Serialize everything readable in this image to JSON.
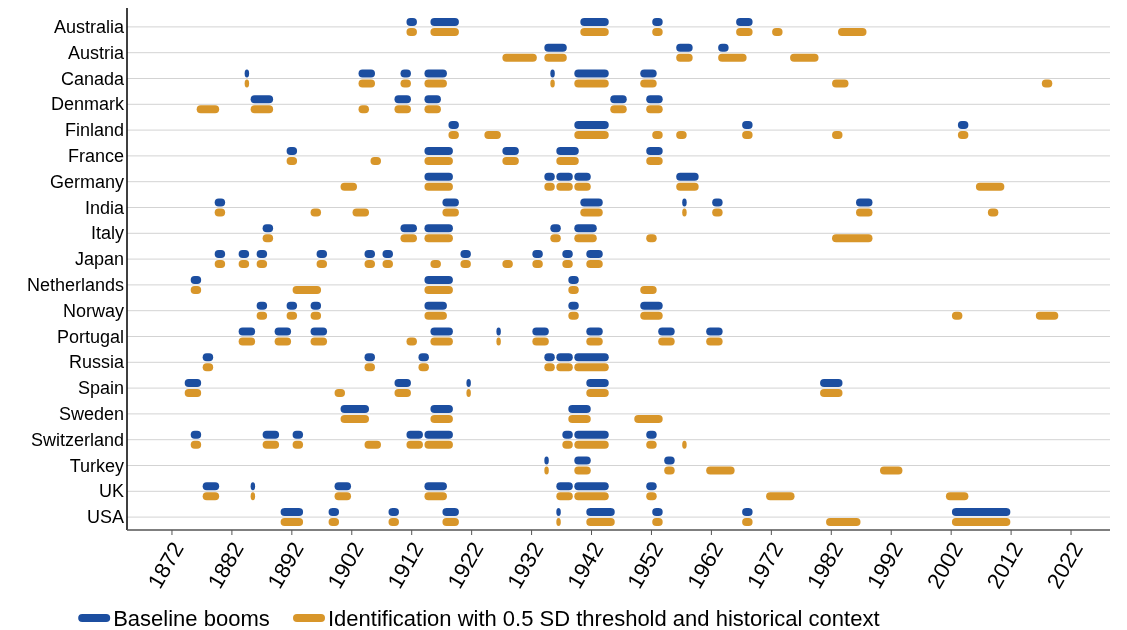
{
  "chart_data": {
    "type": "bar",
    "orientation": "horizontal",
    "categories": [
      "Australia",
      "Austria",
      "Canada",
      "Denmark",
      "Finland",
      "France",
      "Germany",
      "India",
      "Italy",
      "Japan",
      "Netherlands",
      "Norway",
      "Portugal",
      "Russia",
      "Spain",
      "Sweden",
      "Switzerland",
      "Turkey",
      "UK",
      "USA"
    ],
    "xlim": [
      1864.5,
      2028.5
    ],
    "xticks": [
      1872,
      1882,
      1892,
      1902,
      1912,
      1922,
      1932,
      1942,
      1952,
      1962,
      1972,
      1982,
      1992,
      2002,
      2012,
      2022
    ],
    "grid": "y",
    "legend": "bottom",
    "series": [
      {
        "name": "Baseline booms",
        "color": "#1c4ea0",
        "base": [
          1911,
          1934,
          1884,
          1885,
          1918,
          1891,
          1914,
          1879,
          1887,
          1879,
          1875,
          1886,
          1883,
          1877,
          1874,
          1900,
          1875,
          1934,
          1877,
          1890
        ],
        "values": [
          2,
          4,
          1,
          4,
          2,
          2,
          5,
          2,
          2,
          2,
          2,
          2,
          3,
          2,
          3,
          5,
          2,
          1,
          3,
          4
        ]
      },
      {
        "color": "#1c4ea0",
        "base": [
          1915,
          1956,
          1903,
          1909,
          1939,
          1914,
          1934,
          1917,
          1910,
          1883,
          1914,
          1891,
          1889,
          1904,
          1909,
          1915,
          1887,
          1939,
          1885,
          1898
        ],
        "values": [
          5,
          3,
          3,
          3,
          6,
          5,
          2,
          3,
          3,
          2,
          5,
          2,
          3,
          2,
          3,
          4,
          3,
          3,
          1,
          2
        ]
      },
      {
        "color": "#1c4ea0",
        "base": [
          1940,
          1963,
          1910,
          1914,
          1967,
          1927,
          1936,
          1940,
          1914,
          1886,
          1938,
          1895,
          1895,
          1913,
          1921,
          1938,
          1892,
          1954,
          1899,
          1908
        ],
        "values": [
          5,
          2,
          2,
          3,
          2,
          3,
          3,
          4,
          5,
          2,
          2,
          2,
          3,
          2,
          1,
          4,
          2,
          2,
          3,
          2
        ]
      },
      {
        "color": "#1c4ea0",
        "base": [
          1952,
          null,
          1914,
          1945,
          2003,
          1936,
          1939,
          1957,
          1935,
          1896,
          null,
          1914,
          1915,
          1934,
          1941,
          null,
          1911,
          null,
          1914,
          1917
        ],
        "values": [
          2,
          null,
          4,
          3,
          2,
          4,
          3,
          1,
          2,
          2,
          null,
          4,
          4,
          2,
          4,
          null,
          3,
          null,
          4,
          3
        ]
      },
      {
        "color": "#1c4ea0",
        "base": [
          1966,
          null,
          1935,
          1951,
          null,
          1951,
          1956,
          1962,
          1939,
          1904,
          null,
          1938,
          1926,
          1936,
          1980,
          null,
          1914,
          null,
          1936,
          1936
        ],
        "values": [
          3,
          null,
          1,
          3,
          null,
          3,
          4,
          2,
          4,
          2,
          null,
          2,
          1,
          3,
          4,
          null,
          5,
          null,
          3,
          1
        ]
      },
      {
        "color": "#1c4ea0",
        "base": [
          null,
          null,
          1939,
          null,
          null,
          null,
          null,
          1986,
          null,
          1907,
          null,
          1950,
          1932,
          1939,
          null,
          null,
          1937,
          null,
          1939,
          1941
        ],
        "values": [
          null,
          null,
          6,
          null,
          null,
          null,
          null,
          3,
          null,
          2,
          null,
          4,
          3,
          6,
          null,
          null,
          2,
          null,
          6,
          5
        ]
      },
      {
        "color": "#1c4ea0",
        "base": [
          null,
          null,
          1950,
          null,
          null,
          null,
          null,
          null,
          null,
          1920,
          null,
          null,
          1941,
          null,
          null,
          null,
          1939,
          null,
          1951,
          1952
        ],
        "values": [
          null,
          null,
          3,
          null,
          null,
          null,
          null,
          null,
          null,
          2,
          null,
          null,
          3,
          null,
          null,
          null,
          6,
          null,
          2,
          2
        ]
      },
      {
        "color": "#1c4ea0",
        "base": [
          null,
          null,
          null,
          null,
          null,
          null,
          null,
          null,
          null,
          1932,
          null,
          null,
          1953,
          null,
          null,
          null,
          1951,
          null,
          null,
          1967
        ],
        "values": [
          null,
          null,
          null,
          null,
          null,
          null,
          null,
          null,
          null,
          2,
          null,
          null,
          3,
          null,
          null,
          null,
          2,
          null,
          null,
          2
        ]
      },
      {
        "color": "#1c4ea0",
        "base": [
          null,
          null,
          null,
          null,
          null,
          null,
          null,
          null,
          null,
          1937,
          null,
          null,
          1961,
          null,
          null,
          null,
          null,
          null,
          null,
          2002
        ],
        "values": [
          null,
          null,
          null,
          null,
          null,
          null,
          null,
          null,
          null,
          2,
          null,
          null,
          3,
          null,
          null,
          null,
          null,
          null,
          null,
          10
        ]
      },
      {
        "color": "#1c4ea0",
        "base": [
          null,
          null,
          null,
          null,
          null,
          null,
          null,
          null,
          null,
          1941,
          null,
          null,
          null,
          null,
          null,
          null,
          null,
          null,
          null,
          null
        ],
        "values": [
          null,
          null,
          null,
          null,
          null,
          null,
          null,
          null,
          null,
          3,
          null,
          null,
          null,
          null,
          null,
          null,
          null,
          null,
          null,
          null
        ]
      },
      {
        "name": "Identification with 0.5 SD threshold and historical context",
        "color": "#d8962a",
        "base": [
          1911,
          1927,
          1884,
          1876,
          1918,
          1891,
          1900,
          1879,
          1887,
          1879,
          1875,
          1886,
          1883,
          1877,
          1874,
          1900,
          1875,
          1934,
          1877,
          1890
        ],
        "values": [
          2,
          6,
          1,
          4,
          2,
          2,
          3,
          2,
          2,
          2,
          2,
          2,
          3,
          2,
          3,
          5,
          2,
          1,
          3,
          4
        ]
      },
      {
        "color": "#d8962a",
        "base": [
          1915,
          1934,
          1903,
          1885,
          1924,
          1905,
          1914,
          1895,
          1910,
          1883,
          1892,
          1891,
          1889,
          1904,
          1899,
          1915,
          1887,
          1939,
          1885,
          1898
        ],
        "values": [
          5,
          4,
          3,
          4,
          3,
          2,
          5,
          2,
          3,
          2,
          5,
          2,
          3,
          2,
          2,
          4,
          3,
          3,
          1,
          2
        ]
      },
      {
        "color": "#d8962a",
        "base": [
          1940,
          1956,
          1910,
          1903,
          1939,
          1914,
          1934,
          1902,
          1914,
          1886,
          1914,
          1895,
          1895,
          1913,
          1909,
          1938,
          1892,
          1954,
          1899,
          1908
        ],
        "values": [
          5,
          3,
          2,
          2,
          6,
          5,
          2,
          3,
          5,
          2,
          5,
          2,
          3,
          2,
          3,
          4,
          2,
          2,
          3,
          2
        ]
      },
      {
        "color": "#d8962a",
        "base": [
          1952,
          1963,
          1914,
          1909,
          1952,
          1927,
          1936,
          1917,
          1935,
          1896,
          1938,
          1914,
          1911,
          1934,
          1921,
          1949,
          1904,
          1961,
          1914,
          1917
        ],
        "values": [
          2,
          5,
          4,
          3,
          2,
          3,
          3,
          3,
          2,
          2,
          2,
          4,
          2,
          2,
          1,
          5,
          3,
          5,
          4,
          3
        ]
      },
      {
        "color": "#d8962a",
        "base": [
          1966,
          1975,
          1935,
          1914,
          1956,
          1936,
          1939,
          1940,
          1939,
          1904,
          1950,
          1938,
          1915,
          1936,
          1941,
          null,
          1911,
          1990,
          1936,
          1936
        ],
        "values": [
          3,
          5,
          1,
          3,
          2,
          4,
          3,
          4,
          4,
          2,
          3,
          2,
          4,
          3,
          4,
          null,
          3,
          4,
          3,
          1
        ]
      },
      {
        "color": "#d8962a",
        "base": [
          1972,
          null,
          1939,
          1945,
          1967,
          1951,
          1956,
          1957,
          1951,
          1907,
          null,
          1950,
          1926,
          1939,
          1980,
          null,
          1914,
          null,
          1939,
          1941
        ],
        "values": [
          2,
          null,
          6,
          3,
          2,
          3,
          4,
          1,
          2,
          2,
          null,
          4,
          1,
          6,
          4,
          null,
          5,
          null,
          6,
          5
        ]
      },
      {
        "color": "#d8962a",
        "base": [
          1983,
          null,
          1950,
          1951,
          1982,
          null,
          2006,
          1962,
          1982,
          1915,
          null,
          2002,
          1932,
          null,
          null,
          null,
          1937,
          null,
          1951,
          1952
        ],
        "values": [
          5,
          null,
          3,
          3,
          2,
          null,
          5,
          2,
          7,
          2,
          null,
          2,
          3,
          null,
          null,
          null,
          2,
          null,
          2,
          2
        ]
      },
      {
        "color": "#d8962a",
        "base": [
          null,
          null,
          1982,
          null,
          2003,
          null,
          null,
          1986,
          null,
          1920,
          null,
          2016,
          1941,
          null,
          null,
          null,
          1939,
          null,
          1971,
          1967
        ],
        "values": [
          null,
          null,
          3,
          null,
          2,
          null,
          null,
          3,
          null,
          2,
          null,
          4,
          3,
          null,
          null,
          null,
          6,
          null,
          5,
          2
        ]
      },
      {
        "color": "#d8962a",
        "base": [
          null,
          null,
          2017,
          null,
          null,
          null,
          null,
          2008,
          null,
          1927,
          null,
          null,
          1953,
          null,
          null,
          null,
          1951,
          null,
          2001,
          1981
        ],
        "values": [
          null,
          null,
          2,
          null,
          null,
          null,
          null,
          2,
          null,
          2,
          null,
          null,
          3,
          null,
          null,
          null,
          2,
          null,
          4,
          6
        ]
      },
      {
        "color": "#d8962a",
        "base": [
          null,
          null,
          null,
          null,
          null,
          null,
          null,
          null,
          null,
          1932,
          null,
          null,
          1961,
          null,
          null,
          null,
          1957,
          null,
          null,
          2002
        ],
        "values": [
          null,
          null,
          null,
          null,
          null,
          null,
          null,
          null,
          null,
          2,
          null,
          null,
          3,
          null,
          null,
          null,
          1,
          null,
          null,
          10
        ]
      },
      {
        "color": "#d8962a",
        "base": [
          null,
          null,
          null,
          null,
          null,
          null,
          null,
          null,
          null,
          1937,
          null,
          null,
          null,
          null,
          null,
          null,
          null,
          null,
          null,
          null
        ],
        "values": [
          null,
          null,
          null,
          null,
          null,
          null,
          null,
          null,
          null,
          2,
          null,
          null,
          null,
          null,
          null,
          null,
          null,
          null,
          null,
          null
        ]
      },
      {
        "color": "#d8962a",
        "base": [
          null,
          null,
          null,
          null,
          null,
          null,
          null,
          null,
          null,
          1941,
          null,
          null,
          null,
          null,
          null,
          null,
          null,
          null,
          null,
          null
        ],
        "values": [
          null,
          null,
          null,
          null,
          null,
          null,
          null,
          null,
          null,
          3,
          null,
          null,
          null,
          null,
          null,
          null,
          null,
          null,
          null,
          null
        ]
      }
    ]
  }
}
